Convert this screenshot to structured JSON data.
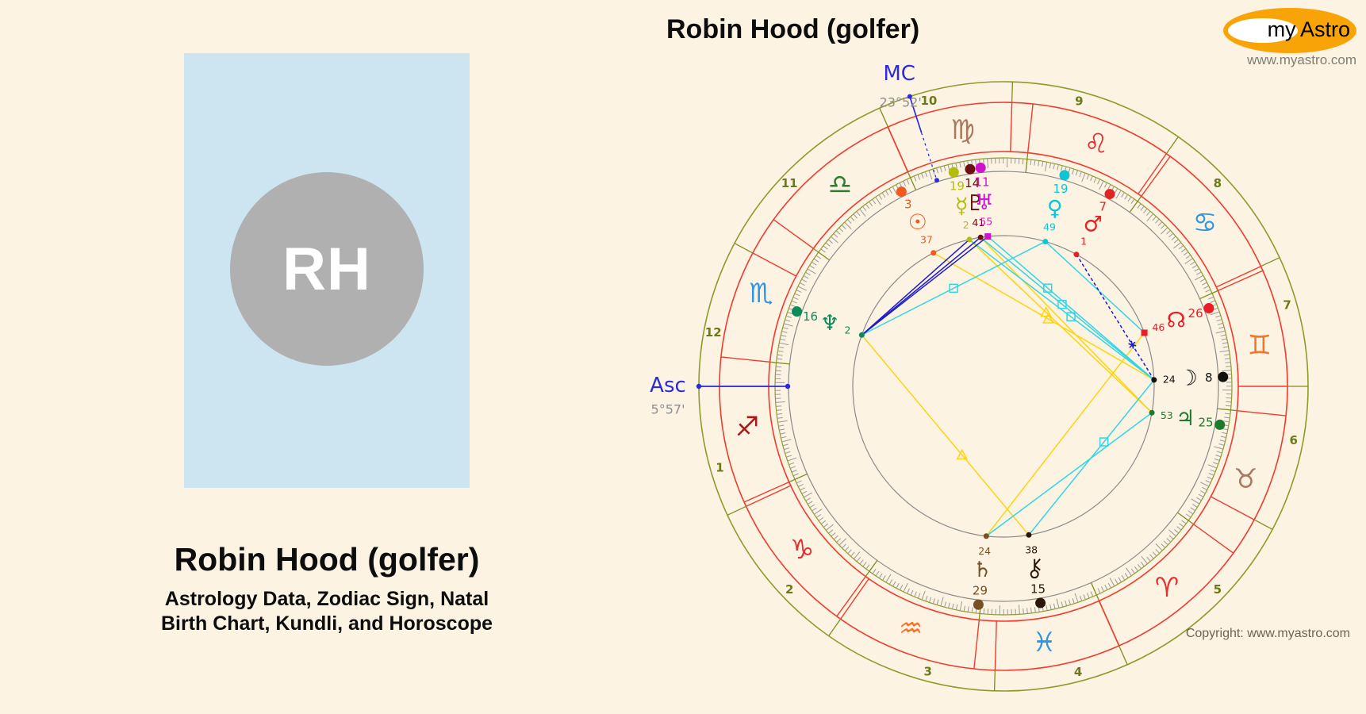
{
  "header": {
    "title": "Robin Hood (golfer)"
  },
  "logo": {
    "text_my": "my",
    "text_astro": "Astro",
    "website": "www.myastro.com",
    "ellipse_color": "#F9A406"
  },
  "profile": {
    "initials": "RH",
    "name": "Robin Hood (golfer)",
    "subtitle": [
      "Astrology Data, Zodiac Sign, Natal",
      "Birth Chart, Kundli, and Horoscope"
    ],
    "panel_color": "#cde4f1",
    "circle_color": "#b0b0b0"
  },
  "footer": {
    "copyright": "Copyright: www.myastro.com"
  },
  "chart_data": {
    "type": "natal-wheel",
    "title": "Robin Hood (golfer)",
    "angles": {
      "asc": {
        "label": "Asc",
        "degree_text": "5°57'",
        "wheel_angle": 180,
        "color": "#2b2bdc"
      },
      "mc": {
        "label": "MC",
        "degree_text": "23°52'",
        "wheel_angle": 107.92,
        "color": "#2b2bdc"
      }
    },
    "zodiac_start_sagittarius_deg": 174.05,
    "signs": [
      {
        "name": "sagittarius",
        "glyph": "♐",
        "color": "#b01616",
        "center": 189.05
      },
      {
        "name": "capricorn",
        "glyph": "♑",
        "color": "#e33030",
        "center": 219.05
      },
      {
        "name": "aquarius",
        "glyph": "♒",
        "color": "#f4742c",
        "center": 249.05
      },
      {
        "name": "pisces",
        "glyph": "♓",
        "color": "#2d95e8",
        "center": 279.05
      },
      {
        "name": "aries",
        "glyph": "♈",
        "color": "#e33030",
        "center": 309.05
      },
      {
        "name": "taurus",
        "glyph": "♉",
        "color": "#a8795c",
        "center": 339.05
      },
      {
        "name": "gemini",
        "glyph": "♊",
        "color": "#f4742c",
        "center": 9.05
      },
      {
        "name": "cancer",
        "glyph": "♋",
        "color": "#2d95e8",
        "center": 39.05
      },
      {
        "name": "leo",
        "glyph": "♌",
        "color": "#e33030",
        "center": 69.05
      },
      {
        "name": "virgo",
        "glyph": "♍",
        "color": "#a8795c",
        "center": 99.05
      },
      {
        "name": "libra",
        "glyph": "♎",
        "color": "#2e7d32",
        "center": 129.05
      },
      {
        "name": "scorpio",
        "glyph": "♏",
        "color": "#2d95e8",
        "center": 159.05
      }
    ],
    "houses": {
      "numbers": [
        "1",
        "2",
        "3",
        "4",
        "5",
        "6",
        "7",
        "8",
        "9",
        "10",
        "11",
        "12"
      ],
      "cusp_angles": [
        180,
        205,
        235,
        268.3,
        294,
        332,
        0,
        25,
        55,
        88.3,
        114,
        152
      ],
      "label_color": "#6b7a19"
    },
    "planets": [
      {
        "name": "sun",
        "glyph": "☉",
        "color": "#f4581c",
        "deg": "3",
        "min": "37",
        "position": "3°37' Libra",
        "angle": 117.67
      },
      {
        "name": "mercury",
        "glyph": "☿",
        "color": "#b3bd0d",
        "deg": "19",
        "min": "2",
        "position": "19°2' Virgo",
        "angle": 103.08
      },
      {
        "name": "pluto",
        "glyph": "♇",
        "color": "#6e0f12",
        "deg": "14",
        "min": "41",
        "position": "14°41' Virgo",
        "angle": 98.73
      },
      {
        "name": "uranus",
        "glyph": "♅",
        "color": "#cf12cf",
        "deg": "11",
        "min": "55",
        "position": "11°55' Virgo",
        "angle": 95.97,
        "marker": "square"
      },
      {
        "name": "venus",
        "glyph": "♀",
        "color": "#10c4d3",
        "deg": "19",
        "min": "49",
        "position": "19°49' Leo",
        "angle": 73.87
      },
      {
        "name": "mars",
        "glyph": "♂",
        "color": "#e02525",
        "deg": "7",
        "min": "1",
        "position": "7°1' Leo",
        "angle": 61.07
      },
      {
        "name": "node",
        "glyph": "☊",
        "color": "#ed1c24",
        "deg": "26",
        "min": "46",
        "position": "26°46' Gemini",
        "angle": 20.82,
        "marker": "square"
      },
      {
        "name": "moon",
        "glyph": "☽",
        "color": "#111111",
        "deg": "8",
        "min": "24",
        "position": "8°24' Gemini",
        "angle": 2.45
      },
      {
        "name": "jupiter",
        "glyph": "♃",
        "color": "#1d7a2c",
        "deg": "25",
        "min": "53",
        "position": "25°53' Taurus",
        "angle": -10.07
      },
      {
        "name": "chiron",
        "glyph": "⚷",
        "color": "#2a1708",
        "deg": "15",
        "min": "38",
        "position": "15°38' Pisces",
        "angle": 279.68
      },
      {
        "name": "saturn",
        "glyph": "♄",
        "color": "#7a4f21",
        "deg": "29",
        "min": "24",
        "position": "29°24' Aquarius",
        "angle": 263.45
      },
      {
        "name": "neptune",
        "glyph": "♆",
        "color": "#0c8a5a",
        "deg": "16",
        "min": "2",
        "position": "16°2' Scorpio",
        "angle": 160.08
      }
    ],
    "aspect_colors": {
      "trine": "#fdd410",
      "square": "#33d4e6",
      "sextile": "#1c1cc8"
    },
    "aspects": [
      {
        "from": "sun",
        "to": "moon",
        "color": "#fdd410",
        "dash": false,
        "glyph": "triangle",
        "t": 0.52
      },
      {
        "from": "mercury",
        "to": "jupiter",
        "color": "#fdd410",
        "dash": false,
        "glyph": "triangle",
        "t": 0.42
      },
      {
        "from": "pluto",
        "to": "jupiter",
        "color": "#fdd410",
        "dash": false,
        "glyph": "none",
        "t": 0.5
      },
      {
        "from": "chiron",
        "to": "neptune",
        "color": "#fdd410",
        "dash": false,
        "glyph": "triangle",
        "t": 0.4
      },
      {
        "from": "saturn",
        "to": "node",
        "color": "#fdd410",
        "dash": false,
        "glyph": "none",
        "t": 0.5
      },
      {
        "from": "mercury",
        "to": "moon",
        "color": "#33d4e6",
        "dash": false,
        "glyph": "square",
        "t": 0.55
      },
      {
        "from": "pluto",
        "to": "moon",
        "color": "#33d4e6",
        "dash": false,
        "glyph": "square",
        "t": 0.47
      },
      {
        "from": "uranus",
        "to": "moon",
        "color": "#33d4e6",
        "dash": false,
        "glyph": "square",
        "t": 0.36
      },
      {
        "from": "venus",
        "to": "neptune",
        "color": "#33d4e6",
        "dash": false,
        "glyph": "square",
        "t": 0.5
      },
      {
        "from": "venus",
        "to": "node",
        "color": "#33d4e6",
        "dash": false,
        "glyph": "none",
        "t": 0.5
      },
      {
        "from": "saturn",
        "to": "jupiter",
        "color": "#33d4e6",
        "dash": false,
        "glyph": "none",
        "t": 0.5
      },
      {
        "from": "chiron",
        "to": "moon",
        "color": "#33d4e6",
        "dash": false,
        "glyph": "square",
        "t": 0.6
      },
      {
        "from": "mercury",
        "to": "neptune",
        "color": "#1c1cc8",
        "dash": false,
        "glyph": "none",
        "t": 0.5
      },
      {
        "from": "pluto",
        "to": "neptune",
        "color": "#1c1cc8",
        "dash": false,
        "glyph": "none",
        "t": 0.5
      },
      {
        "from": "uranus",
        "to": "neptune",
        "color": "#1c1cc8",
        "dash": false,
        "glyph": "none",
        "t": 0.5
      },
      {
        "from": "mars",
        "to": "moon",
        "color": "#1c1cc8",
        "dash": true,
        "glyph": "star",
        "t": 0.72
      }
    ],
    "ring_colors": {
      "outer": "#8d9b2b",
      "zodiac": "#ef3b30",
      "ticks": "#999999",
      "inner": "#8a8a8a"
    }
  }
}
